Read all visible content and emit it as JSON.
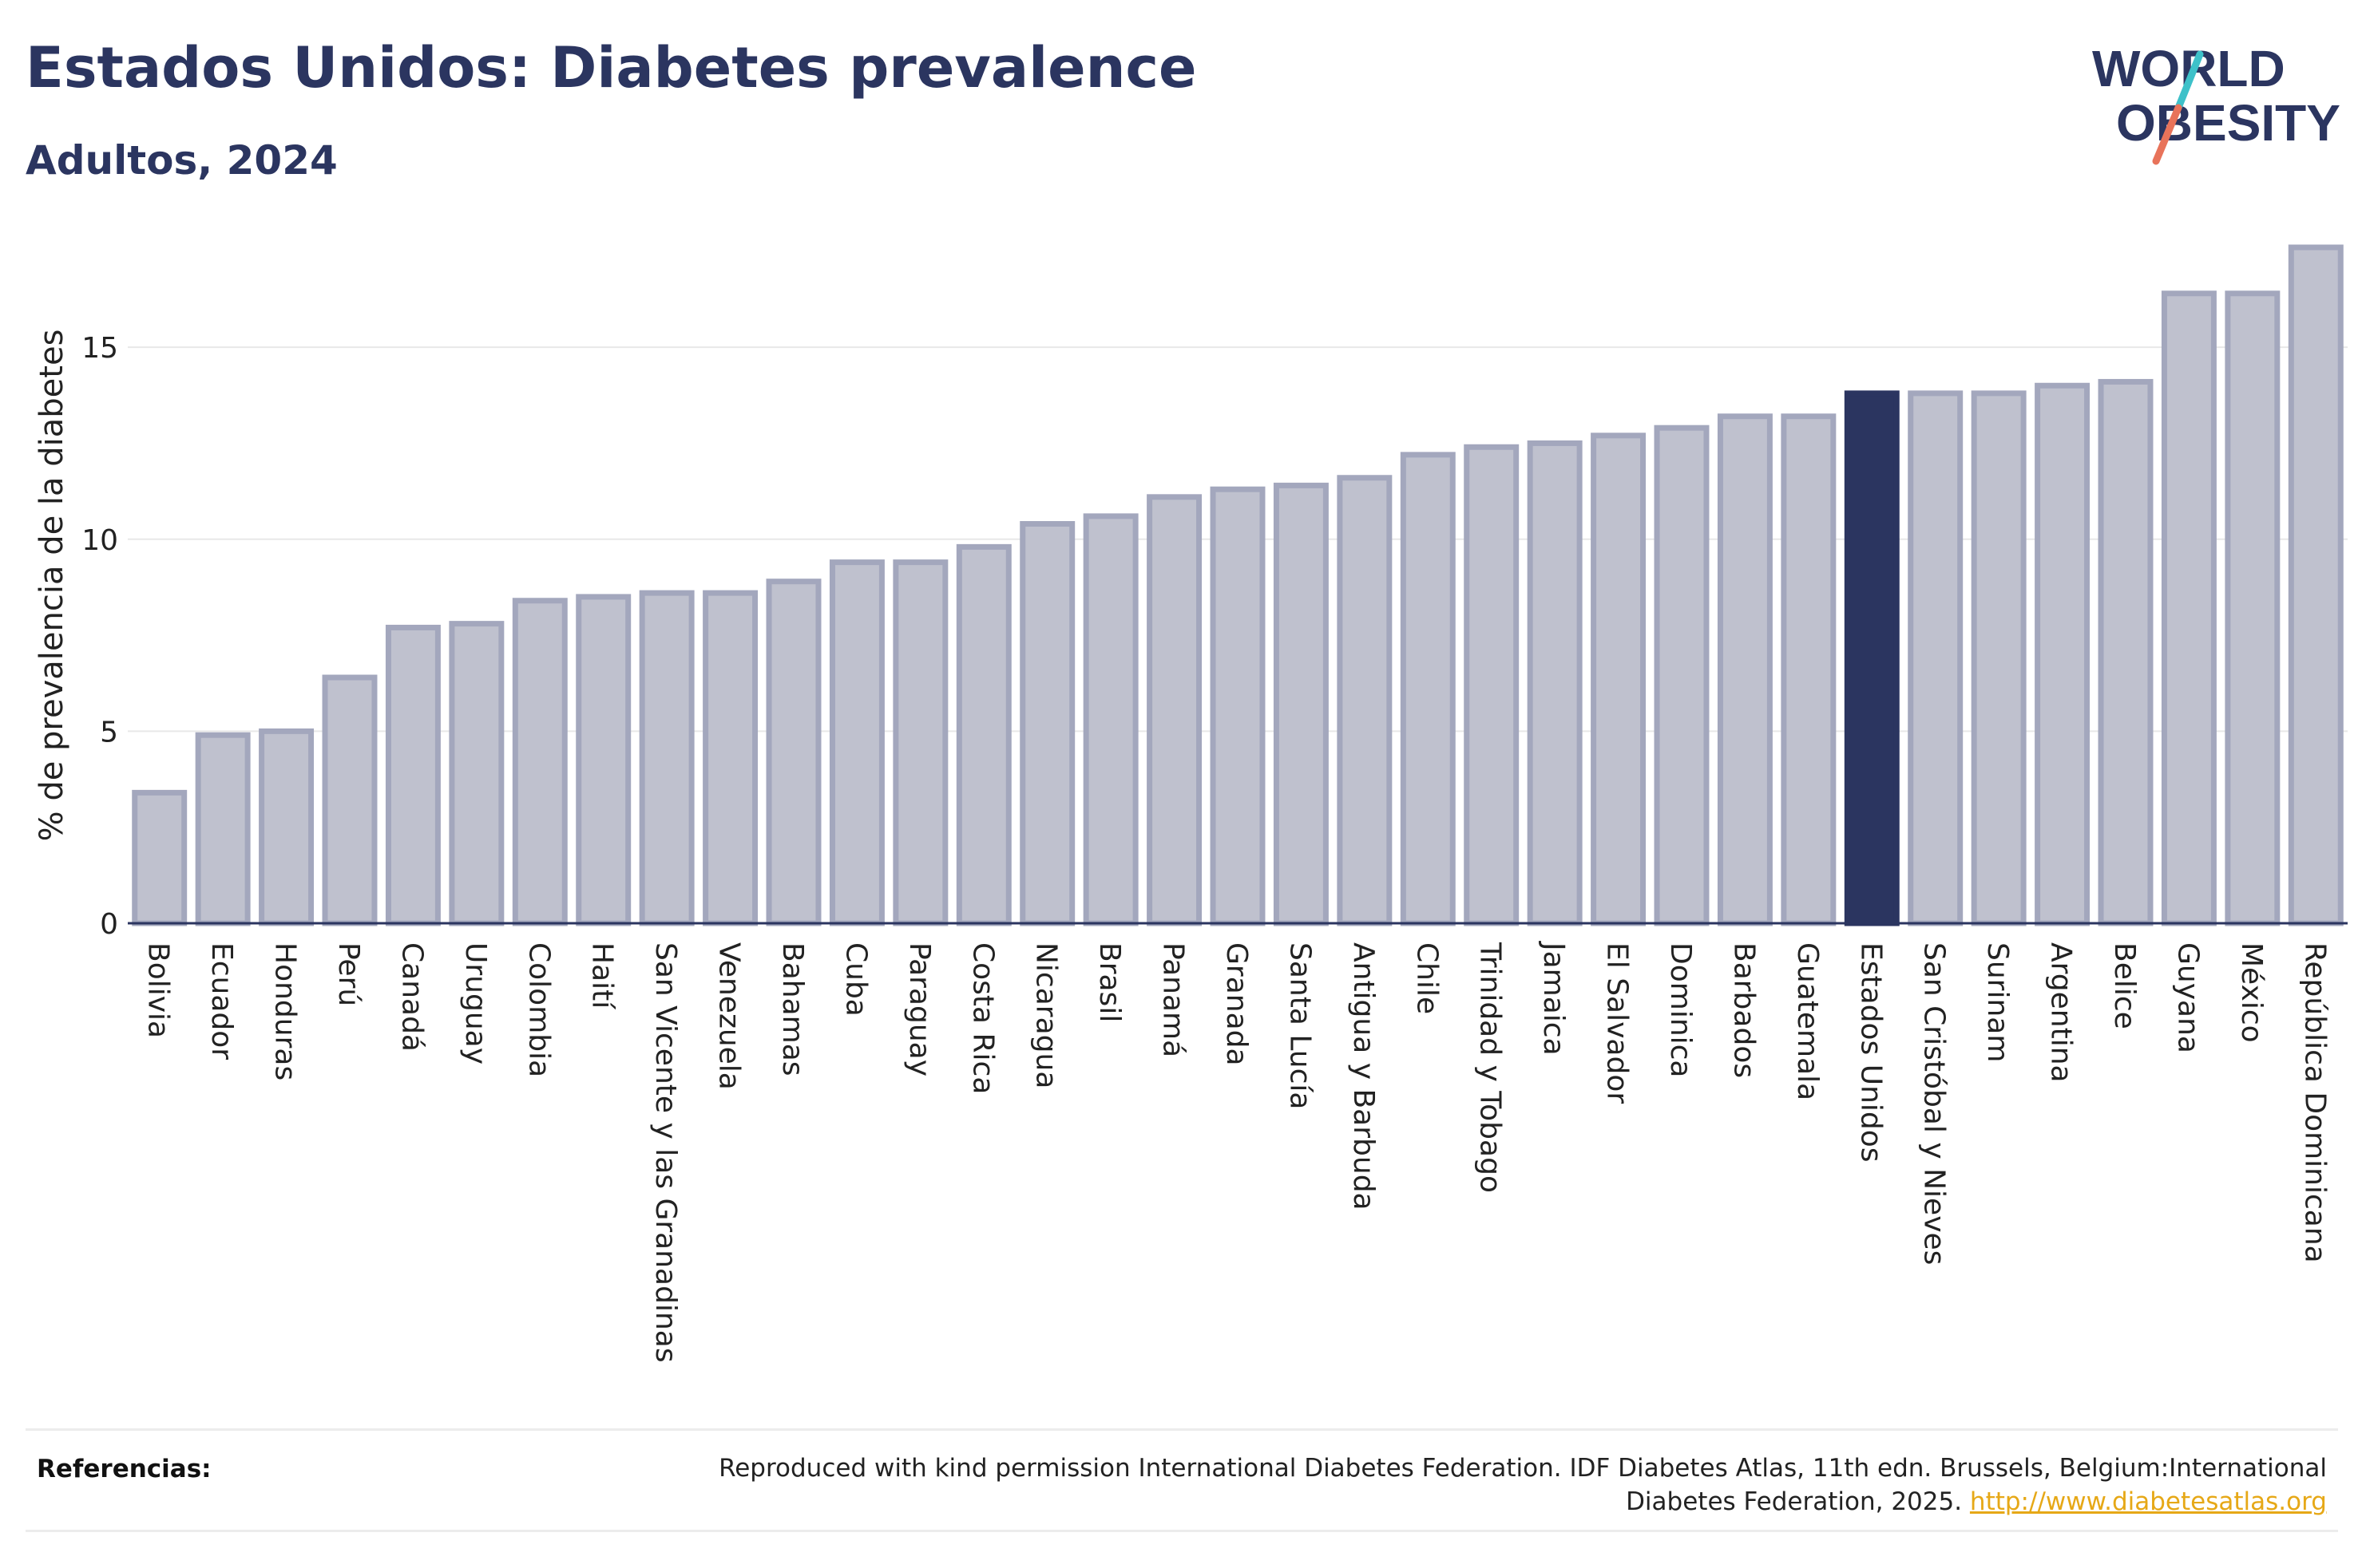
{
  "header": {
    "title": "Estados Unidos: Diabetes prevalence",
    "subtitle": "Adultos, 2024"
  },
  "logo": {
    "line1": "WORLD",
    "line2": "OBESITY"
  },
  "colors": {
    "highlight": "#2b3560",
    "bar_fill": "#bfc1ce",
    "bar_stroke": "#a3a7bd",
    "logo_teal": "#3ec1c9",
    "logo_coral": "#e8735a",
    "link": "#e6a817"
  },
  "chart_data": {
    "type": "bar",
    "title": "Estados Unidos: Diabetes prevalence",
    "subtitle": "Adultos, 2024",
    "xlabel": "",
    "ylabel": "% de prevalencia de la diabetes",
    "ylim": [
      0,
      17.6
    ],
    "yticks": [
      0,
      5,
      10,
      15
    ],
    "grid": true,
    "highlight": "Estados Unidos",
    "categories": [
      "Bolivia",
      "Ecuador",
      "Honduras",
      "Perú",
      "Canadá",
      "Uruguay",
      "Colombia",
      "Haití",
      "San Vicente y las Granadinas",
      "Venezuela",
      "Bahamas",
      "Cuba",
      "Paraguay",
      "Costa Rica",
      "Nicaragua",
      "Brasil",
      "Panamá",
      "Granada",
      "Santa Lucía",
      "Antigua y Barbuda",
      "Chile",
      "Trinidad y Tobago",
      "Jamaica",
      "El Salvador",
      "Dominica",
      "Barbados",
      "Guatemala",
      "Estados Unidos",
      "San Cristóbal y Nieves",
      "Surinam",
      "Argentina",
      "Belice",
      "Guyana",
      "México",
      "República Dominicana"
    ],
    "values": [
      3.4,
      4.9,
      5.0,
      6.4,
      7.7,
      7.8,
      8.4,
      8.5,
      8.6,
      8.6,
      8.9,
      9.4,
      9.4,
      9.8,
      10.4,
      10.6,
      11.1,
      11.3,
      11.4,
      11.6,
      12.2,
      12.4,
      12.5,
      12.7,
      12.9,
      13.2,
      13.2,
      13.8,
      13.8,
      13.8,
      14.0,
      14.1,
      16.4,
      16.4,
      17.6
    ]
  },
  "references": {
    "label": "Referencias:",
    "text": "Reproduced with kind permission International Diabetes Federation. IDF Diabetes Atlas, 11th edn. Brussels, Belgium:International Diabetes Federation, 2025.",
    "link": "http://www.diabetesatlas.org"
  }
}
